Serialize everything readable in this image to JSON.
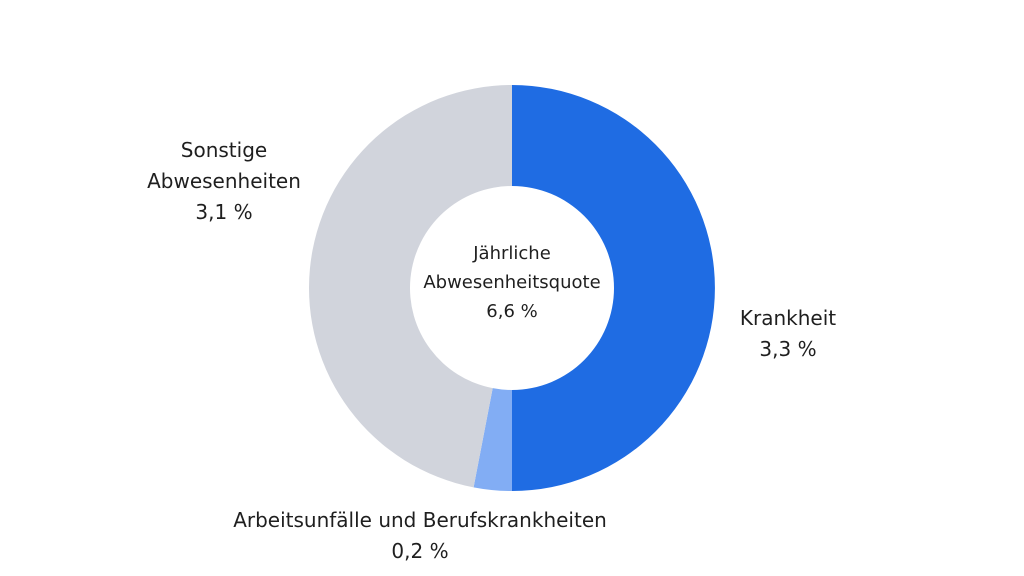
{
  "chart_data": {
    "type": "pie",
    "donut": true,
    "center": {
      "title": "Jährliche Abwesenheitsquote",
      "title_line1": "Jährliche",
      "title_line2": "Abwesenheitsquote",
      "value_label": "6,6 %"
    },
    "slices": [
      {
        "name": "Krankheit",
        "name_lines": [
          "Krankheit"
        ],
        "value": 3.3,
        "value_label": "3,3 %",
        "color": "#1f6ce3"
      },
      {
        "name": "Arbeitsunfälle und Berufskrankheiten",
        "name_lines": [
          "Arbeitsunfälle und Berufskrankheiten"
        ],
        "value": 0.2,
        "value_label": "0,2 %",
        "color": "#82adf4"
      },
      {
        "name": "Sonstige Abwesenheiten",
        "name_lines": [
          "Sonstige",
          "Abwesenheiten"
        ],
        "value": 3.1,
        "value_label": "3,1 %",
        "color": "#d1d4dc"
      }
    ],
    "total": 6.6,
    "start_direction": "top",
    "order": "clockwise"
  }
}
